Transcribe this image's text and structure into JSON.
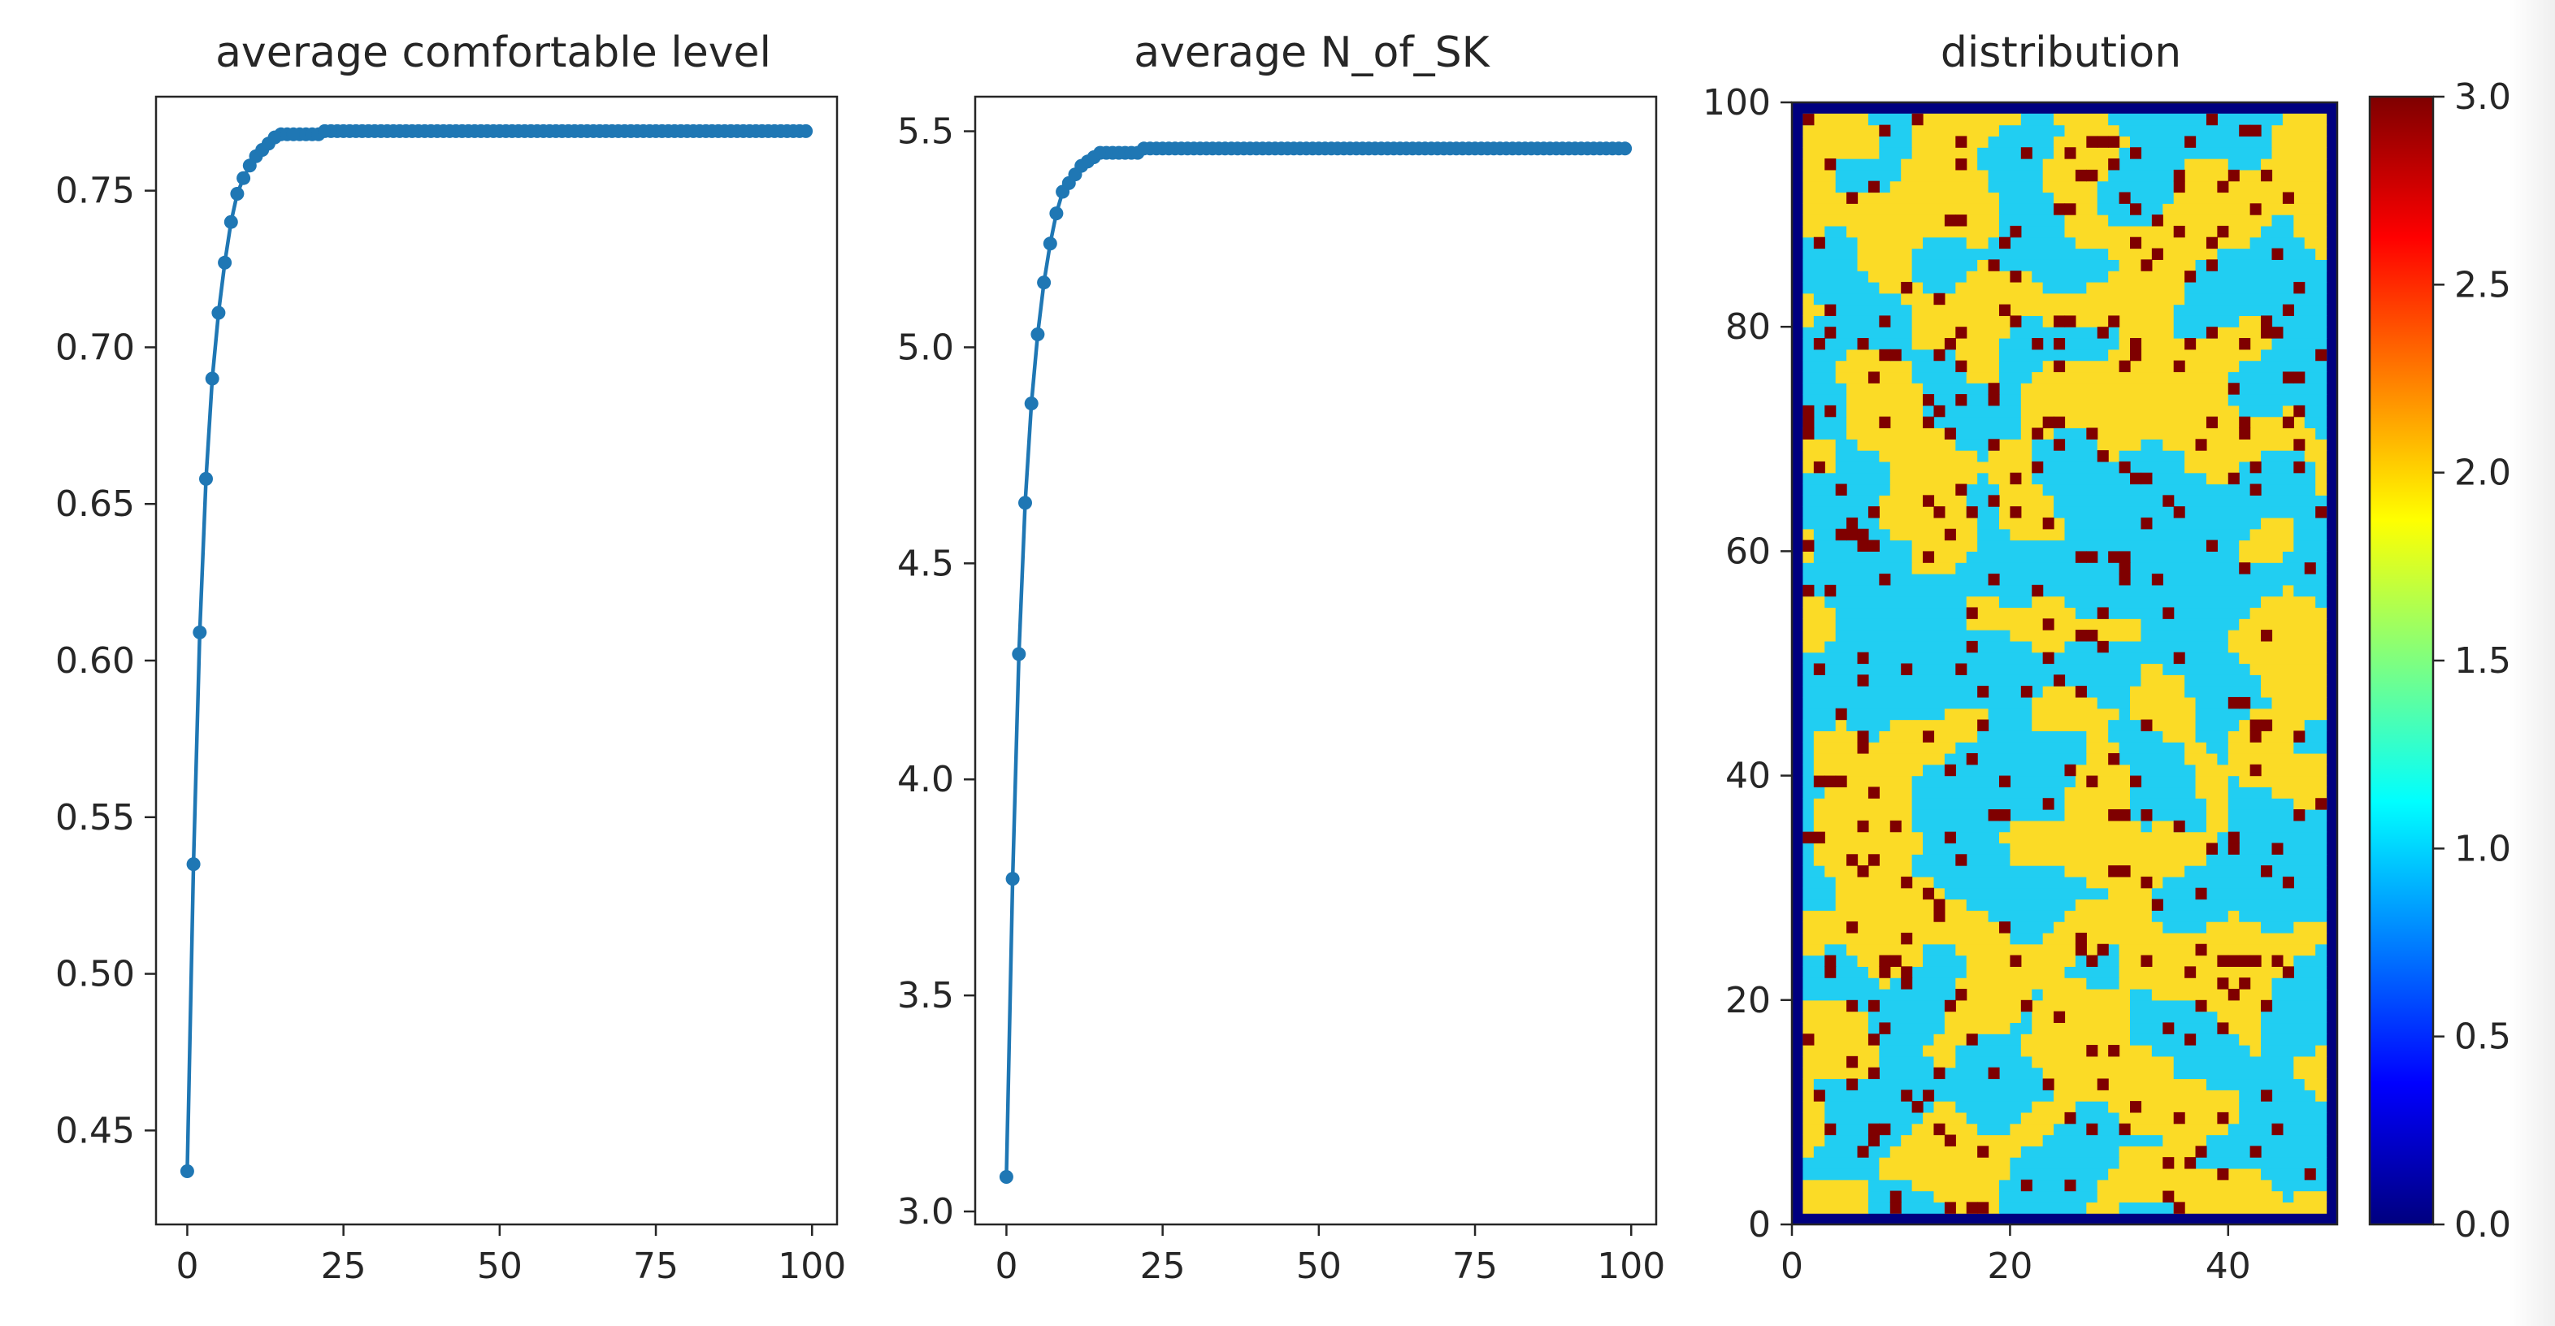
{
  "chart_data": [
    {
      "type": "line",
      "title": "average comfortable level",
      "xlabel": "",
      "ylabel": "",
      "xlim": [
        -5,
        104
      ],
      "ylim": [
        0.42,
        0.78
      ],
      "xticks": [
        0,
        25,
        50,
        75,
        100
      ],
      "yticks": [
        0.45,
        0.5,
        0.55,
        0.6,
        0.65,
        0.7,
        0.75
      ],
      "ytick_labels": [
        "0.45",
        "0.50",
        "0.55",
        "0.60",
        "0.65",
        "0.70",
        "0.75"
      ],
      "grid": false,
      "marker": "circle",
      "color": "#1f77b4",
      "series": [
        {
          "x": [
            0,
            1,
            2,
            3,
            4,
            5,
            6,
            7,
            8,
            9,
            10,
            11,
            12,
            13,
            14,
            15,
            16,
            17,
            18,
            19,
            20,
            21,
            22,
            23,
            24,
            25,
            26,
            27,
            28,
            29,
            30,
            31,
            32,
            33,
            34,
            35,
            36,
            37,
            38,
            39,
            40,
            41,
            42,
            43,
            44,
            45,
            46,
            47,
            48,
            49,
            50,
            51,
            52,
            53,
            54,
            55,
            56,
            57,
            58,
            59,
            60,
            61,
            62,
            63,
            64,
            65,
            66,
            67,
            68,
            69,
            70,
            71,
            72,
            73,
            74,
            75,
            76,
            77,
            78,
            79,
            80,
            81,
            82,
            83,
            84,
            85,
            86,
            87,
            88,
            89,
            90,
            91,
            92,
            93,
            94,
            95,
            96,
            97,
            98,
            99
          ],
          "values": [
            0.437,
            0.535,
            0.609,
            0.658,
            0.69,
            0.711,
            0.727,
            0.74,
            0.749,
            0.754,
            0.758,
            0.761,
            0.763,
            0.765,
            0.767,
            0.768,
            0.768,
            0.768,
            0.768,
            0.768,
            0.768,
            0.768,
            0.769,
            0.769,
            0.769,
            0.769,
            0.769,
            0.769,
            0.769,
            0.769,
            0.769,
            0.769,
            0.769,
            0.769,
            0.769,
            0.769,
            0.769,
            0.769,
            0.769,
            0.769,
            0.769,
            0.769,
            0.769,
            0.769,
            0.769,
            0.769,
            0.769,
            0.769,
            0.769,
            0.769,
            0.769,
            0.769,
            0.769,
            0.769,
            0.769,
            0.769,
            0.769,
            0.769,
            0.769,
            0.769,
            0.769,
            0.769,
            0.769,
            0.769,
            0.769,
            0.769,
            0.769,
            0.769,
            0.769,
            0.769,
            0.769,
            0.769,
            0.769,
            0.769,
            0.769,
            0.769,
            0.769,
            0.769,
            0.769,
            0.769,
            0.769,
            0.769,
            0.769,
            0.769,
            0.769,
            0.769,
            0.769,
            0.769,
            0.769,
            0.769,
            0.769,
            0.769,
            0.769,
            0.769,
            0.769,
            0.769,
            0.769,
            0.769,
            0.769,
            0.769
          ]
        }
      ]
    },
    {
      "type": "line",
      "title": "average N_of_SK",
      "xlabel": "",
      "ylabel": "",
      "xlim": [
        -5,
        104
      ],
      "ylim": [
        2.97,
        5.58
      ],
      "xticks": [
        0,
        25,
        50,
        75,
        100
      ],
      "yticks": [
        3.0,
        3.5,
        4.0,
        4.5,
        5.0,
        5.5
      ],
      "ytick_labels": [
        "3.0",
        "3.5",
        "4.0",
        "4.5",
        "5.0",
        "5.5"
      ],
      "grid": false,
      "marker": "circle",
      "color": "#1f77b4",
      "series": [
        {
          "x": [
            0,
            1,
            2,
            3,
            4,
            5,
            6,
            7,
            8,
            9,
            10,
            11,
            12,
            13,
            14,
            15,
            16,
            17,
            18,
            19,
            20,
            21,
            22,
            23,
            24,
            25,
            26,
            27,
            28,
            29,
            30,
            31,
            32,
            33,
            34,
            35,
            36,
            37,
            38,
            39,
            40,
            41,
            42,
            43,
            44,
            45,
            46,
            47,
            48,
            49,
            50,
            51,
            52,
            53,
            54,
            55,
            56,
            57,
            58,
            59,
            60,
            61,
            62,
            63,
            64,
            65,
            66,
            67,
            68,
            69,
            70,
            71,
            72,
            73,
            74,
            75,
            76,
            77,
            78,
            79,
            80,
            81,
            82,
            83,
            84,
            85,
            86,
            87,
            88,
            89,
            90,
            91,
            92,
            93,
            94,
            95,
            96,
            97,
            98,
            99
          ],
          "values": [
            3.08,
            3.77,
            4.29,
            4.64,
            4.87,
            5.03,
            5.15,
            5.24,
            5.31,
            5.36,
            5.38,
            5.4,
            5.42,
            5.43,
            5.44,
            5.45,
            5.45,
            5.45,
            5.45,
            5.45,
            5.45,
            5.45,
            5.46,
            5.46,
            5.46,
            5.46,
            5.46,
            5.46,
            5.46,
            5.46,
            5.46,
            5.46,
            5.46,
            5.46,
            5.46,
            5.46,
            5.46,
            5.46,
            5.46,
            5.46,
            5.46,
            5.46,
            5.46,
            5.46,
            5.46,
            5.46,
            5.46,
            5.46,
            5.46,
            5.46,
            5.46,
            5.46,
            5.46,
            5.46,
            5.46,
            5.46,
            5.46,
            5.46,
            5.46,
            5.46,
            5.46,
            5.46,
            5.46,
            5.46,
            5.46,
            5.46,
            5.46,
            5.46,
            5.46,
            5.46,
            5.46,
            5.46,
            5.46,
            5.46,
            5.46,
            5.46,
            5.46,
            5.46,
            5.46,
            5.46,
            5.46,
            5.46,
            5.46,
            5.46,
            5.46,
            5.46,
            5.46,
            5.46,
            5.46,
            5.46,
            5.46,
            5.46,
            5.46,
            5.46,
            5.46,
            5.46,
            5.46,
            5.46,
            5.46,
            5.46
          ]
        }
      ]
    },
    {
      "type": "heatmap",
      "title": "distribution",
      "xlabel": "",
      "ylabel": "",
      "xlim": [
        0,
        50
      ],
      "ylim": [
        0,
        100
      ],
      "xticks": [
        0,
        20,
        40
      ],
      "yticks": [
        0,
        20,
        40,
        60,
        80,
        100
      ],
      "grid": false,
      "colormap": "jet",
      "value_range": [
        0,
        3
      ],
      "grid_size": [
        50,
        100
      ],
      "category_colors": {
        "0": "#00007f",
        "1": "#21cef2",
        "2": "#fbdb26",
        "3": "#7f0000"
      },
      "region_composition": {
        "1": 0.52,
        "2": 0.41,
        "3": 0.07
      },
      "colorbar": {
        "range": [
          0.0,
          3.0
        ],
        "ticks": [
          0.0,
          0.5,
          1.0,
          1.5,
          2.0,
          2.5,
          3.0
        ],
        "tick_labels": [
          "0.0",
          "0.5",
          "1.0",
          "1.5",
          "2.0",
          "2.5",
          "3.0"
        ],
        "colors": [
          "#00007f",
          "#0000ff",
          "#007fff",
          "#00ffff",
          "#7fff7f",
          "#ffff00",
          "#ff7f00",
          "#ff0000",
          "#7f0000"
        ]
      }
    }
  ]
}
